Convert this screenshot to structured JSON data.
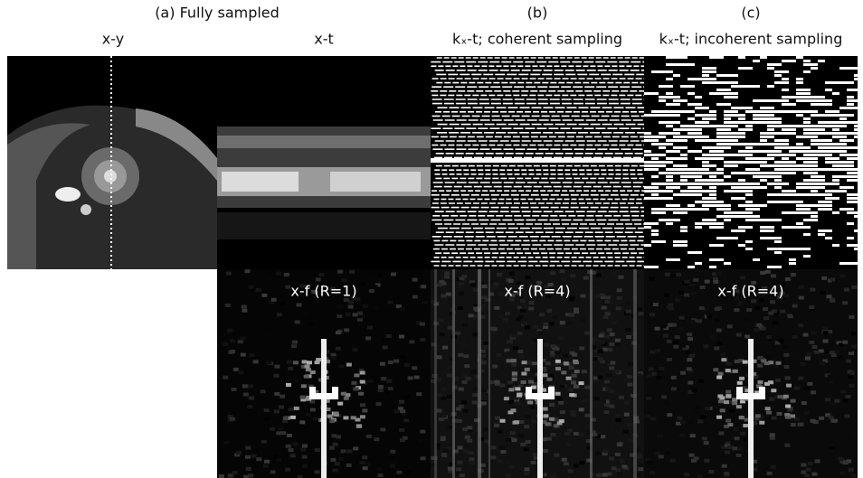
{
  "header": {
    "a": "(a) Fully sampled",
    "b": "(b)",
    "c": "(c)"
  },
  "columns": {
    "xy": "x-y",
    "xt": "x-t",
    "coherent": "kₓ-t; coherent sampling",
    "incoherent": "kₓ-t; incoherent sampling"
  },
  "panels": {
    "xf_full": "x-f (R=1)",
    "xf_coherent": "x-f  (R=4)",
    "xf_incoherent": "x-f  (R=4)"
  }
}
